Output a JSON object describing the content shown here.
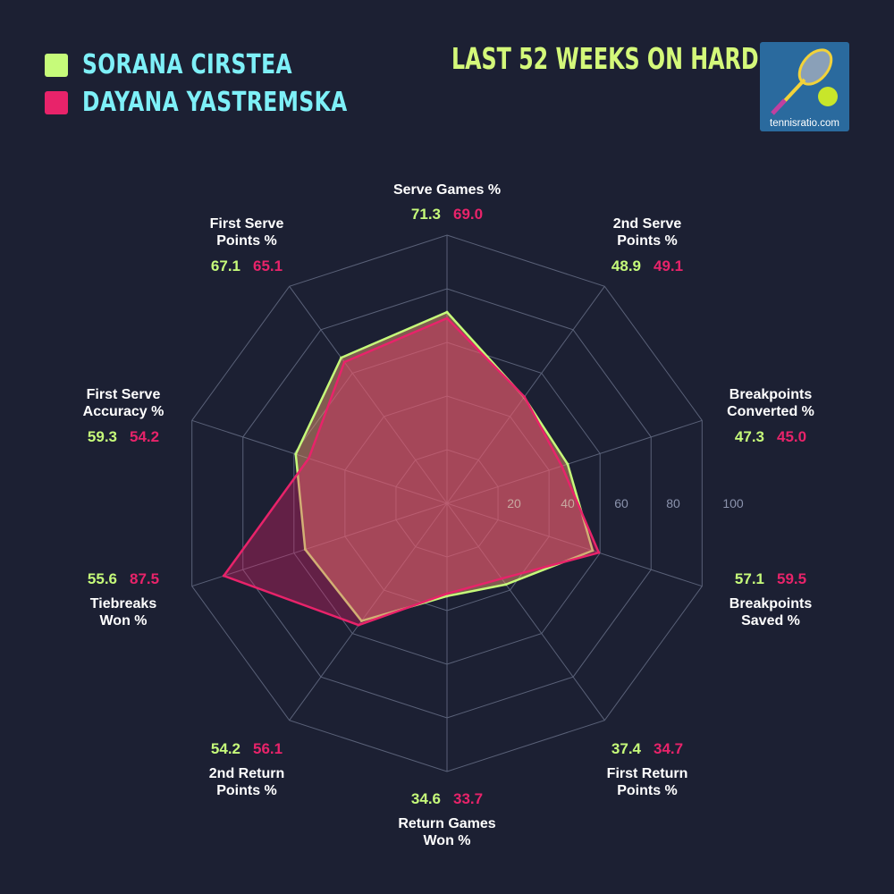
{
  "legend": [
    {
      "name": "SORANA CIRSTEA",
      "color": "#c6fb7a"
    },
    {
      "name": "DAYANA YASTREMSKA",
      "color": "#e8236a"
    }
  ],
  "subtitle": "LAST 52 WEEKS ON HARD",
  "logo_text": "tennisratio.com",
  "chart_data": {
    "type": "radar",
    "title": "LAST 52 WEEKS ON HARD",
    "axes": [
      {
        "label": [
          "Serve Games %"
        ]
      },
      {
        "label": [
          "2nd Serve",
          "Points %"
        ]
      },
      {
        "label": [
          "Breakpoints",
          "Converted %"
        ]
      },
      {
        "label": [
          "Breakpoints",
          "Saved %"
        ]
      },
      {
        "label": [
          "First Return",
          "Points %"
        ]
      },
      {
        "label": [
          "Return Games",
          "Won %"
        ]
      },
      {
        "label": [
          "2nd Return",
          "Points %"
        ]
      },
      {
        "label": [
          "Tiebreaks",
          "Won %"
        ]
      },
      {
        "label": [
          "First Serve",
          "Accuracy %"
        ]
      },
      {
        "label": [
          "First Serve",
          "Points %"
        ]
      }
    ],
    "series": [
      {
        "name": "SORANA CIRSTEA",
        "color": "#c6fb7a",
        "values": [
          71.3,
          48.9,
          47.3,
          57.1,
          37.4,
          34.6,
          54.2,
          55.6,
          59.3,
          67.1
        ]
      },
      {
        "name": "DAYANA YASTREMSKA",
        "color": "#e8236a",
        "values": [
          69.0,
          49.1,
          45.0,
          59.5,
          34.7,
          33.7,
          56.1,
          87.5,
          54.2,
          65.1
        ]
      }
    ],
    "value_labels": [
      [
        "71.3",
        "69.0"
      ],
      [
        "48.9",
        "49.1"
      ],
      [
        "47.3",
        "45.0"
      ],
      [
        "57.1",
        "59.5"
      ],
      [
        "37.4",
        "34.7"
      ],
      [
        "34.6",
        "33.7"
      ],
      [
        "54.2",
        "56.1"
      ],
      [
        "55.6",
        "87.5"
      ],
      [
        "59.3",
        "54.2"
      ],
      [
        "67.1",
        "65.1"
      ]
    ],
    "radial_ticks": [
      "20",
      "40",
      "60",
      "80",
      "100"
    ],
    "range": [
      0,
      100
    ],
    "grid": true
  }
}
